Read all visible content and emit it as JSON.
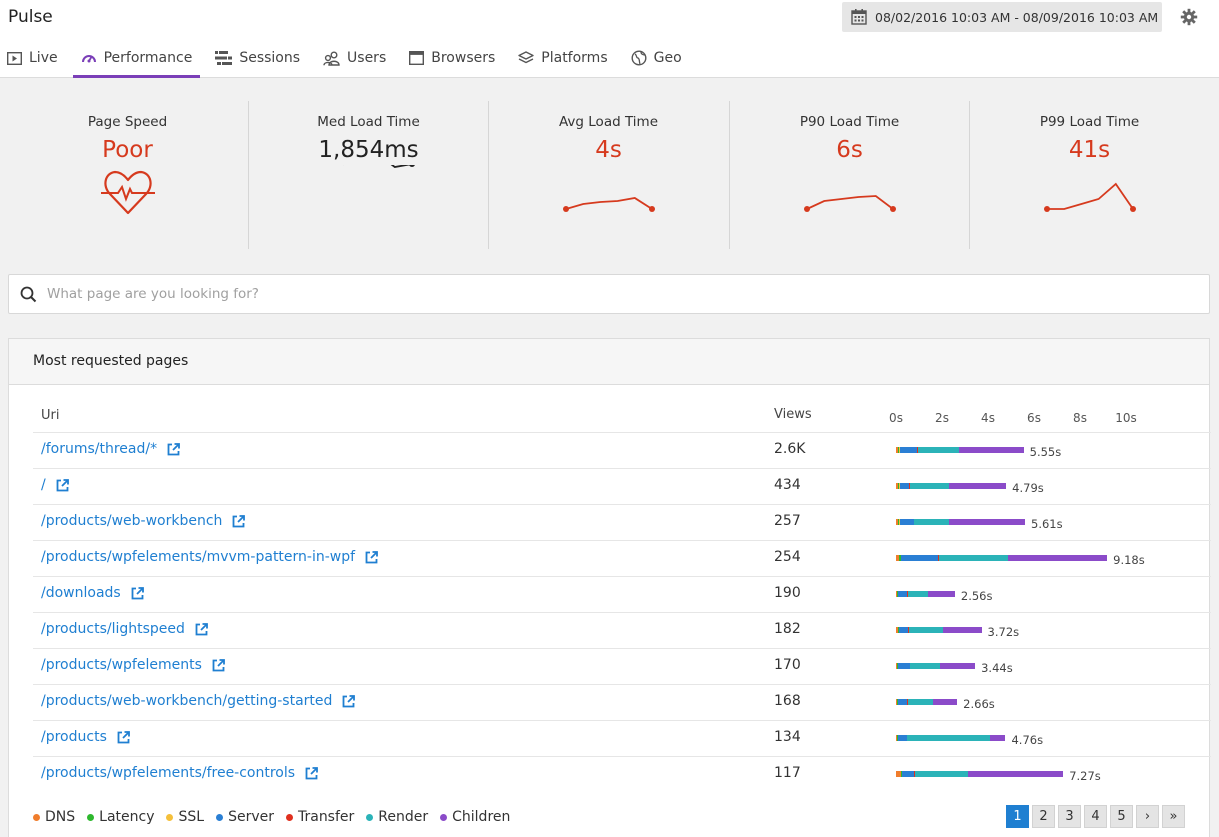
{
  "app": {
    "title": "Pulse"
  },
  "date_range": "08/02/2016 10:03 AM - 08/09/2016 10:03 AM",
  "tabs": [
    {
      "label": "Live",
      "icon": "play-box-icon"
    },
    {
      "label": "Performance",
      "icon": "speedometer-icon",
      "active": true
    },
    {
      "label": "Sessions",
      "icon": "sessions-icon"
    },
    {
      "label": "Users",
      "icon": "users-icon"
    },
    {
      "label": "Browsers",
      "icon": "browser-window-icon"
    },
    {
      "label": "Platforms",
      "icon": "layers-icon"
    },
    {
      "label": "Geo",
      "icon": "globe-icon"
    }
  ],
  "metrics": [
    {
      "label": "Page Speed",
      "value": "Poor",
      "color": "#d63a1e",
      "icon": "heart-pulse-icon"
    },
    {
      "label": "Med Load Time",
      "value": "1,854ms",
      "color": "#222222",
      "trend": [
        0.55,
        0.45,
        0.62,
        0.55,
        0.42,
        0.45
      ]
    },
    {
      "label": "Avg Load Time",
      "value": "4s",
      "color": "#d63a1e",
      "trend": [
        0.0,
        0.05,
        0.07,
        0.08,
        0.11,
        0.0
      ]
    },
    {
      "label": "P90 Load Time",
      "value": "6s",
      "color": "#d63a1e",
      "trend": [
        0.0,
        0.08,
        0.1,
        0.12,
        0.13,
        0.0
      ]
    },
    {
      "label": "P99 Load Time",
      "value": "41s",
      "color": "#d63a1e",
      "trend": [
        0.0,
        0.0,
        0.05,
        0.1,
        0.25,
        0.0
      ]
    }
  ],
  "search": {
    "placeholder": "What page are you looking for?"
  },
  "panel": {
    "title": "Most requested pages"
  },
  "table": {
    "headers": {
      "uri": "Uri",
      "views": "Views"
    },
    "ticks": [
      "0s",
      "2s",
      "4s",
      "6s",
      "8s",
      "10s"
    ],
    "rows": [
      {
        "uri": "/forums/thread/*",
        "views": "2.6K",
        "duration": "5.55s",
        "timings": [
          0.1,
          0.05,
          0.02,
          0.75,
          0.02,
          1.8,
          2.81
        ]
      },
      {
        "uri": "/",
        "views": "434",
        "duration": "4.79s",
        "timings": [
          0.1,
          0.05,
          0.02,
          0.4,
          0.02,
          1.7,
          2.5
        ]
      },
      {
        "uri": "/products/web-workbench",
        "views": "257",
        "duration": "5.61s",
        "timings": [
          0.1,
          0.05,
          0.02,
          0.6,
          0.02,
          1.5,
          3.32
        ]
      },
      {
        "uri": "/products/wpfelements/mvvm-pattern-in-wpf",
        "views": "254",
        "duration": "9.18s",
        "timings": [
          0.15,
          0.05,
          0.02,
          1.6,
          0.05,
          3.0,
          4.31
        ]
      },
      {
        "uri": "/downloads",
        "views": "190",
        "duration": "2.56s",
        "timings": [
          0.05,
          0.03,
          0.01,
          0.4,
          0.02,
          0.9,
          1.15
        ]
      },
      {
        "uri": "/products/lightspeed",
        "views": "182",
        "duration": "3.72s",
        "timings": [
          0.1,
          0.03,
          0.01,
          0.4,
          0.02,
          1.5,
          1.66
        ]
      },
      {
        "uri": "/products/wpfelements",
        "views": "170",
        "duration": "3.44s",
        "timings": [
          0.05,
          0.03,
          0.01,
          0.5,
          0.02,
          1.3,
          1.53
        ]
      },
      {
        "uri": "/products/web-workbench/getting-started",
        "views": "168",
        "duration": "2.66s",
        "timings": [
          0.05,
          0.03,
          0.01,
          0.4,
          0.02,
          1.1,
          1.05
        ]
      },
      {
        "uri": "/products",
        "views": "134",
        "duration": "4.76s",
        "timings": [
          0.05,
          0.02,
          0.01,
          0.4,
          0.02,
          3.6,
          0.66
        ]
      },
      {
        "uri": "/products/wpfelements/free-controls",
        "views": "117",
        "duration": "7.27s",
        "timings": [
          0.2,
          0.05,
          0.02,
          0.5,
          0.05,
          2.3,
          4.15
        ]
      }
    ]
  },
  "legend": [
    {
      "label": "DNS",
      "color": "#f07d2c"
    },
    {
      "label": "Latency",
      "color": "#2eb82e"
    },
    {
      "label": "SSL",
      "color": "#f5c03b"
    },
    {
      "label": "Server",
      "color": "#2a7fd4"
    },
    {
      "label": "Transfer",
      "color": "#e0301e"
    },
    {
      "label": "Render",
      "color": "#2bb3b8"
    },
    {
      "label": "Children",
      "color": "#8b4bc9"
    }
  ],
  "pagination": {
    "pages": [
      "1",
      "2",
      "3",
      "4",
      "5"
    ],
    "current": "1",
    "next": "›",
    "last": "»"
  }
}
